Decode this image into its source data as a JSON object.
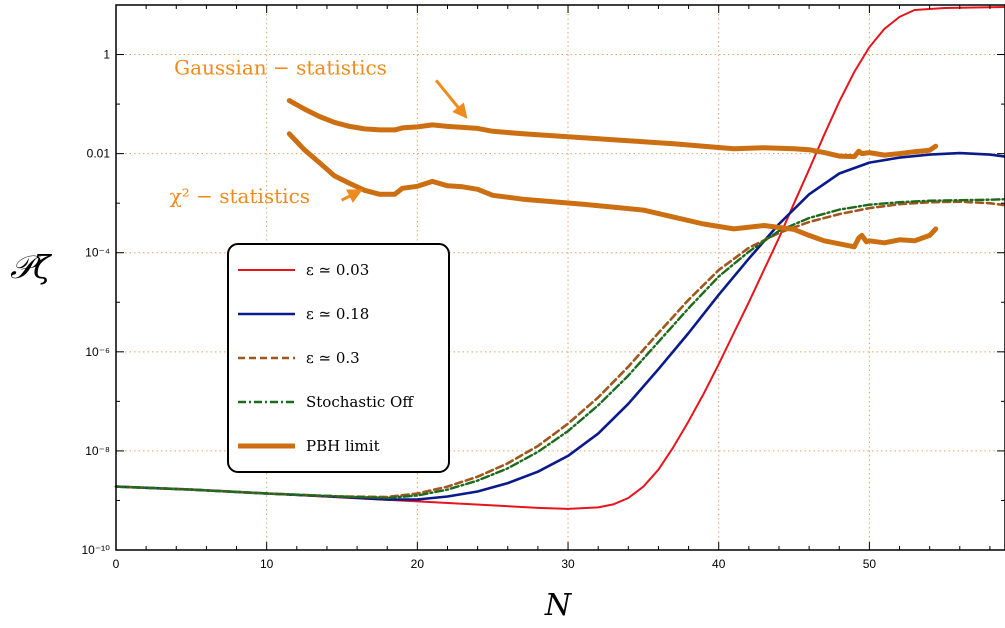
{
  "chart_data": {
    "type": "line",
    "title": "",
    "xlabel": "N",
    "ylabel": "𝒫ζ",
    "yscale": "log",
    "xlim": [
      0,
      59
    ],
    "ylim_log10": [
      -10,
      1.0
    ],
    "xticks": [
      0,
      10,
      20,
      30,
      40,
      50
    ],
    "xtick_labels": [
      "0",
      "10",
      "20",
      "30",
      "40",
      "50"
    ],
    "yticks_log10": [
      -10,
      -8,
      -6,
      -4,
      -2,
      0
    ],
    "ytick_labels": [
      "10⁻¹⁰",
      "10⁻⁸",
      "10⁻⁶",
      "10⁻⁴",
      "0.01",
      "1"
    ],
    "grid": true,
    "legend_placement": "center-left",
    "colors": {
      "eps003": "#e8141b",
      "eps018": "#0a1a8c",
      "eps03": "#a0561c",
      "stochastic_off": "#1c6b1c",
      "pbh": "#cc6f12",
      "annotation": "#ef8a1c"
    },
    "series": [
      {
        "name": "ε ≃ 0.03",
        "style": "solid",
        "points_log10": [
          [
            0,
            -8.72
          ],
          [
            5,
            -8.78
          ],
          [
            10,
            -8.86
          ],
          [
            15,
            -8.94
          ],
          [
            20,
            -9.02
          ],
          [
            25,
            -9.1
          ],
          [
            28,
            -9.15
          ],
          [
            30,
            -9.17
          ],
          [
            32,
            -9.14
          ],
          [
            33,
            -9.08
          ],
          [
            34,
            -8.95
          ],
          [
            35,
            -8.72
          ],
          [
            36,
            -8.38
          ],
          [
            37,
            -7.92
          ],
          [
            38,
            -7.4
          ],
          [
            39,
            -6.85
          ],
          [
            40,
            -6.25
          ],
          [
            41,
            -5.62
          ],
          [
            42,
            -5.0
          ],
          [
            43,
            -4.35
          ],
          [
            44,
            -3.7
          ],
          [
            45,
            -3.0
          ],
          [
            46,
            -2.32
          ],
          [
            47,
            -1.62
          ],
          [
            48,
            -0.95
          ],
          [
            49,
            -0.35
          ],
          [
            50,
            0.15
          ],
          [
            51,
            0.52
          ],
          [
            52,
            0.76
          ],
          [
            53,
            0.9
          ],
          [
            55,
            0.94
          ],
          [
            57,
            0.95
          ],
          [
            59,
            0.96
          ]
        ]
      },
      {
        "name": "ε ≃ 0.18",
        "style": "solid",
        "points_log10": [
          [
            0,
            -8.72
          ],
          [
            5,
            -8.78
          ],
          [
            10,
            -8.86
          ],
          [
            15,
            -8.93
          ],
          [
            18,
            -8.98
          ],
          [
            20,
            -8.98
          ],
          [
            22,
            -8.92
          ],
          [
            24,
            -8.82
          ],
          [
            26,
            -8.65
          ],
          [
            28,
            -8.42
          ],
          [
            30,
            -8.1
          ],
          [
            32,
            -7.65
          ],
          [
            34,
            -7.05
          ],
          [
            36,
            -6.35
          ],
          [
            38,
            -5.62
          ],
          [
            40,
            -4.85
          ],
          [
            42,
            -4.12
          ],
          [
            44,
            -3.42
          ],
          [
            46,
            -2.82
          ],
          [
            48,
            -2.4
          ],
          [
            50,
            -2.18
          ],
          [
            52,
            -2.08
          ],
          [
            54,
            -2.02
          ],
          [
            56,
            -1.99
          ],
          [
            58,
            -2.02
          ],
          [
            59,
            -2.06
          ]
        ]
      },
      {
        "name": "ε ≃ 0.3",
        "style": "dashed",
        "points_log10": [
          [
            0,
            -8.72
          ],
          [
            5,
            -8.78
          ],
          [
            10,
            -8.86
          ],
          [
            15,
            -8.92
          ],
          [
            18,
            -8.93
          ],
          [
            20,
            -8.86
          ],
          [
            22,
            -8.72
          ],
          [
            24,
            -8.52
          ],
          [
            26,
            -8.25
          ],
          [
            28,
            -7.9
          ],
          [
            30,
            -7.45
          ],
          [
            32,
            -6.92
          ],
          [
            34,
            -6.3
          ],
          [
            36,
            -5.62
          ],
          [
            38,
            -4.95
          ],
          [
            40,
            -4.35
          ],
          [
            42,
            -3.9
          ],
          [
            44,
            -3.6
          ],
          [
            46,
            -3.38
          ],
          [
            48,
            -3.22
          ],
          [
            50,
            -3.1
          ],
          [
            52,
            -3.02
          ],
          [
            54,
            -2.98
          ],
          [
            56,
            -2.97
          ],
          [
            58,
            -3.0
          ],
          [
            59,
            -3.04
          ]
        ]
      },
      {
        "name": "Stochastic Off",
        "style": "dashdot",
        "points_log10": [
          [
            0,
            -8.72
          ],
          [
            5,
            -8.78
          ],
          [
            10,
            -8.86
          ],
          [
            15,
            -8.92
          ],
          [
            18,
            -8.95
          ],
          [
            20,
            -8.9
          ],
          [
            22,
            -8.78
          ],
          [
            24,
            -8.6
          ],
          [
            26,
            -8.35
          ],
          [
            28,
            -8.02
          ],
          [
            30,
            -7.6
          ],
          [
            32,
            -7.08
          ],
          [
            34,
            -6.48
          ],
          [
            36,
            -5.8
          ],
          [
            38,
            -5.12
          ],
          [
            40,
            -4.48
          ],
          [
            42,
            -3.98
          ],
          [
            44,
            -3.56
          ],
          [
            46,
            -3.3
          ],
          [
            48,
            -3.13
          ],
          [
            50,
            -3.03
          ],
          [
            52,
            -2.98
          ],
          [
            54,
            -2.95
          ],
          [
            56,
            -2.94
          ],
          [
            58,
            -2.93
          ],
          [
            59,
            -2.92
          ]
        ]
      },
      {
        "name": "PBH limit",
        "style": "thick",
        "segments_log10": [
          [
            [
              11.5,
              -0.93
            ],
            [
              12.5,
              -1.1
            ],
            [
              13.5,
              -1.25
            ],
            [
              14.5,
              -1.37
            ],
            [
              15.5,
              -1.45
            ],
            [
              16.5,
              -1.5
            ],
            [
              17.5,
              -1.52
            ],
            [
              18.5,
              -1.52
            ],
            [
              19,
              -1.48
            ],
            [
              20,
              -1.46
            ],
            [
              21,
              -1.42
            ],
            [
              22,
              -1.45
            ],
            [
              23,
              -1.47
            ],
            [
              24,
              -1.49
            ],
            [
              25,
              -1.55
            ],
            [
              27,
              -1.6
            ],
            [
              29,
              -1.64
            ],
            [
              31,
              -1.68
            ],
            [
              33,
              -1.72
            ],
            [
              35,
              -1.76
            ],
            [
              37,
              -1.8
            ],
            [
              39,
              -1.85
            ],
            [
              41,
              -1.9
            ],
            [
              43,
              -1.88
            ],
            [
              45,
              -1.9
            ],
            [
              46,
              -1.92
            ],
            [
              47,
              -1.98
            ],
            [
              48,
              -2.05
            ],
            [
              49,
              -2.06
            ],
            [
              49.3,
              -1.95
            ],
            [
              49.5,
              -2.0
            ],
            [
              50,
              -1.98
            ],
            [
              51,
              -2.03
            ],
            [
              52,
              -2.0
            ],
            [
              53,
              -1.96
            ],
            [
              54,
              -1.93
            ],
            [
              54.4,
              -1.85
            ]
          ],
          [
            [
              11.5,
              -1.6
            ],
            [
              12.5,
              -1.92
            ],
            [
              13.5,
              -2.18
            ],
            [
              14.5,
              -2.45
            ],
            [
              15.5,
              -2.6
            ],
            [
              16.5,
              -2.74
            ],
            [
              17.5,
              -2.82
            ],
            [
              18.5,
              -2.82
            ],
            [
              19,
              -2.7
            ],
            [
              20,
              -2.66
            ],
            [
              21,
              -2.56
            ],
            [
              22,
              -2.65
            ],
            [
              23,
              -2.67
            ],
            [
              24,
              -2.72
            ],
            [
              25,
              -2.84
            ],
            [
              27,
              -2.92
            ],
            [
              29,
              -2.97
            ],
            [
              31,
              -3.02
            ],
            [
              33,
              -3.08
            ],
            [
              35,
              -3.14
            ],
            [
              37,
              -3.28
            ],
            [
              39,
              -3.42
            ],
            [
              41,
              -3.52
            ],
            [
              43,
              -3.45
            ],
            [
              45,
              -3.53
            ],
            [
              46,
              -3.65
            ],
            [
              47,
              -3.76
            ],
            [
              48,
              -3.82
            ],
            [
              49,
              -3.88
            ],
            [
              49.3,
              -3.7
            ],
            [
              49.5,
              -3.65
            ],
            [
              49.8,
              -3.78
            ],
            [
              50,
              -3.76
            ],
            [
              51,
              -3.8
            ],
            [
              52,
              -3.74
            ],
            [
              53,
              -3.76
            ],
            [
              54,
              -3.65
            ],
            [
              54.4,
              -3.52
            ]
          ]
        ]
      }
    ],
    "annotations": [
      {
        "text": "Gaussian − statistics",
        "anchor": [
          2.0,
          -0.4
        ],
        "arrow_to": [
          23.2,
          -1.25
        ]
      },
      {
        "text": "χ² − statistics",
        "anchor": [
          1.7,
          -3.0
        ],
        "arrow_to": [
          16.2,
          -2.75
        ]
      }
    ]
  }
}
